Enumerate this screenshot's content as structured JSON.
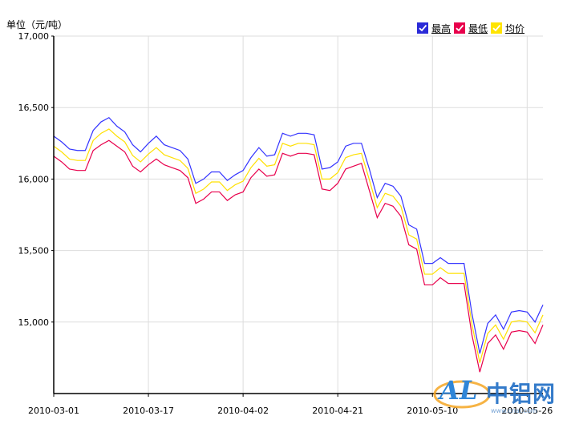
{
  "unit_label": "单位（元/吨）",
  "legend": [
    {
      "label": "最高",
      "color": "#3333ff",
      "box_color": "#2a2ad8"
    },
    {
      "label": "最低",
      "color": "#e8004c",
      "box_color": "#e8004c"
    },
    {
      "label": "均价",
      "color": "#ffe000",
      "box_color": "#ffe400"
    }
  ],
  "watermark": {
    "brand": "AL",
    "name": "中铝网",
    "sub": "www.cnal.com"
  },
  "chart_data": {
    "type": "line",
    "title": "",
    "xlabel": "",
    "ylabel": "",
    "ylim": [
      14500,
      17000
    ],
    "y_ticks": [
      "17,000",
      "16,500",
      "16,000",
      "15,500",
      "15,000"
    ],
    "y_tick_values": [
      17000,
      16500,
      16000,
      15500,
      15000
    ],
    "x_tick_labels": [
      "2010-03-01",
      "2010-03-17",
      "2010-04-02",
      "2010-04-21",
      "2010-05-10",
      "2010-05-26"
    ],
    "x_tick_indices": [
      0,
      12,
      24,
      36,
      48,
      60
    ],
    "grid": true,
    "legend_position": "top-right",
    "series": [
      {
        "name": "最高",
        "color": "#3333ff",
        "values": [
          16300,
          16260,
          16210,
          16200,
          16200,
          16340,
          16400,
          16430,
          16370,
          16330,
          16240,
          16190,
          16250,
          16300,
          16240,
          16220,
          16200,
          16140,
          15970,
          16000,
          16050,
          16050,
          15990,
          16030,
          16060,
          16150,
          16220,
          16160,
          16170,
          16320,
          16300,
          16320,
          16320,
          16310,
          16070,
          16080,
          16120,
          16230,
          16250,
          16250,
          16070,
          15870,
          15970,
          15950,
          15880,
          15680,
          15650,
          15410,
          15410,
          15450,
          15410,
          15410,
          15410,
          15060,
          14780,
          14990,
          15050,
          14950,
          15070,
          15080,
          15070,
          15000,
          15120
        ]
      },
      {
        "name": "最低",
        "color": "#e8004c",
        "values": [
          16160,
          16120,
          16070,
          16060,
          16060,
          16200,
          16240,
          16270,
          16230,
          16190,
          16090,
          16050,
          16100,
          16140,
          16100,
          16080,
          16060,
          16010,
          15830,
          15860,
          15910,
          15910,
          15850,
          15890,
          15910,
          16010,
          16070,
          16020,
          16030,
          16180,
          16160,
          16180,
          16180,
          16170,
          15930,
          15920,
          15970,
          16070,
          16090,
          16110,
          15920,
          15730,
          15830,
          15810,
          15740,
          15540,
          15510,
          15260,
          15260,
          15310,
          15270,
          15270,
          15270,
          14910,
          14650,
          14850,
          14910,
          14810,
          14930,
          14940,
          14930,
          14850,
          14980
        ]
      },
      {
        "name": "均价",
        "color": "#ffe000",
        "values": [
          16230,
          16190,
          16140,
          16130,
          16130,
          16270,
          16320,
          16350,
          16300,
          16260,
          16165,
          16120,
          16175,
          16220,
          16170,
          16150,
          16130,
          16075,
          15900,
          15930,
          15980,
          15980,
          15920,
          15960,
          15985,
          16080,
          16145,
          16090,
          16100,
          16250,
          16230,
          16250,
          16250,
          16240,
          16000,
          16000,
          16045,
          16150,
          16170,
          16180,
          15995,
          15800,
          15900,
          15880,
          15810,
          15610,
          15580,
          15335,
          15335,
          15380,
          15340,
          15340,
          15340,
          14985,
          14715,
          14920,
          14980,
          14880,
          15000,
          15010,
          15000,
          14925,
          15050
        ]
      }
    ]
  }
}
